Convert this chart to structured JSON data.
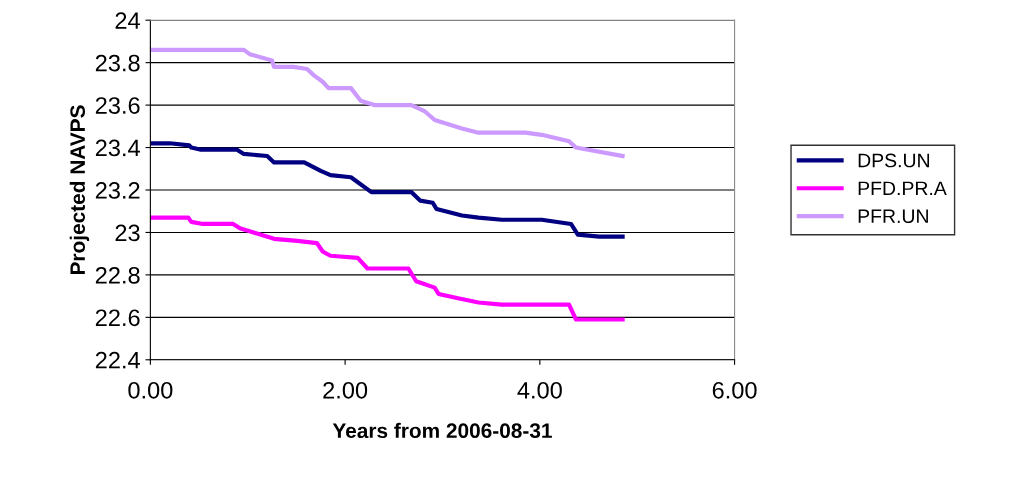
{
  "chart_data": {
    "type": "line",
    "xlabel": "Years from 2006-08-31",
    "ylabel": "Projected NAVPS",
    "xlim": [
      0,
      6
    ],
    "xticks": [
      {
        "value": 0,
        "label": "0.00"
      },
      {
        "value": 2,
        "label": "2.00"
      },
      {
        "value": 4,
        "label": "4.00"
      },
      {
        "value": 6,
        "label": "6.00"
      }
    ],
    "ylim": [
      22.4,
      24
    ],
    "yticks": [
      22.4,
      22.6,
      22.8,
      23,
      23.2,
      23.4,
      23.6,
      23.8,
      24
    ],
    "grid": "y",
    "legend": "right",
    "marker": "none",
    "line_style": "solid",
    "series": [
      {
        "name": "DPS.UN",
        "color": "#000080",
        "x": [
          0,
          0.2,
          0.4,
          0.42,
          0.52,
          0.89,
          0.96,
          1.2,
          1.27,
          1.58,
          1.75,
          1.85,
          2.06,
          2.27,
          2.68,
          2.77,
          2.9,
          2.94,
          3.2,
          3.37,
          3.61,
          4.02,
          4.32,
          4.39,
          4.61,
          4.85
        ],
        "values": [
          23.42,
          23.42,
          23.41,
          23.4,
          23.39,
          23.39,
          23.37,
          23.36,
          23.33,
          23.33,
          23.29,
          23.27,
          23.26,
          23.19,
          23.19,
          23.15,
          23.14,
          23.11,
          23.08,
          23.07,
          23.06,
          23.06,
          23.04,
          22.99,
          22.98,
          22.98
        ]
      },
      {
        "name": "PFD.PR.A",
        "color": "#ff00ff",
        "x": [
          0,
          0.39,
          0.42,
          0.54,
          0.85,
          0.92,
          1.06,
          1.27,
          1.51,
          1.71,
          1.77,
          1.85,
          2.13,
          2.23,
          2.65,
          2.73,
          2.92,
          2.96,
          3.16,
          3.37,
          3.61,
          4.3,
          4.37,
          4.85
        ],
        "values": [
          23.07,
          23.07,
          23.05,
          23.04,
          23.04,
          23.02,
          23.0,
          22.97,
          22.96,
          22.95,
          22.91,
          22.89,
          22.88,
          22.83,
          22.83,
          22.77,
          22.74,
          22.71,
          22.69,
          22.67,
          22.66,
          22.66,
          22.59,
          22.59
        ]
      },
      {
        "name": "PFR.UN",
        "color": "#cc99ff",
        "x": [
          0,
          0.96,
          1.02,
          1.25,
          1.27,
          1.47,
          1.61,
          1.68,
          1.77,
          1.83,
          2.06,
          2.16,
          2.3,
          2.68,
          2.82,
          2.92,
          3.2,
          3.37,
          3.85,
          4.02,
          4.3,
          4.37,
          4.85
        ],
        "values": [
          23.86,
          23.86,
          23.84,
          23.81,
          23.78,
          23.78,
          23.77,
          23.74,
          23.71,
          23.68,
          23.68,
          23.62,
          23.6,
          23.6,
          23.57,
          23.53,
          23.49,
          23.47,
          23.47,
          23.46,
          23.43,
          23.4,
          23.36
        ]
      }
    ]
  }
}
